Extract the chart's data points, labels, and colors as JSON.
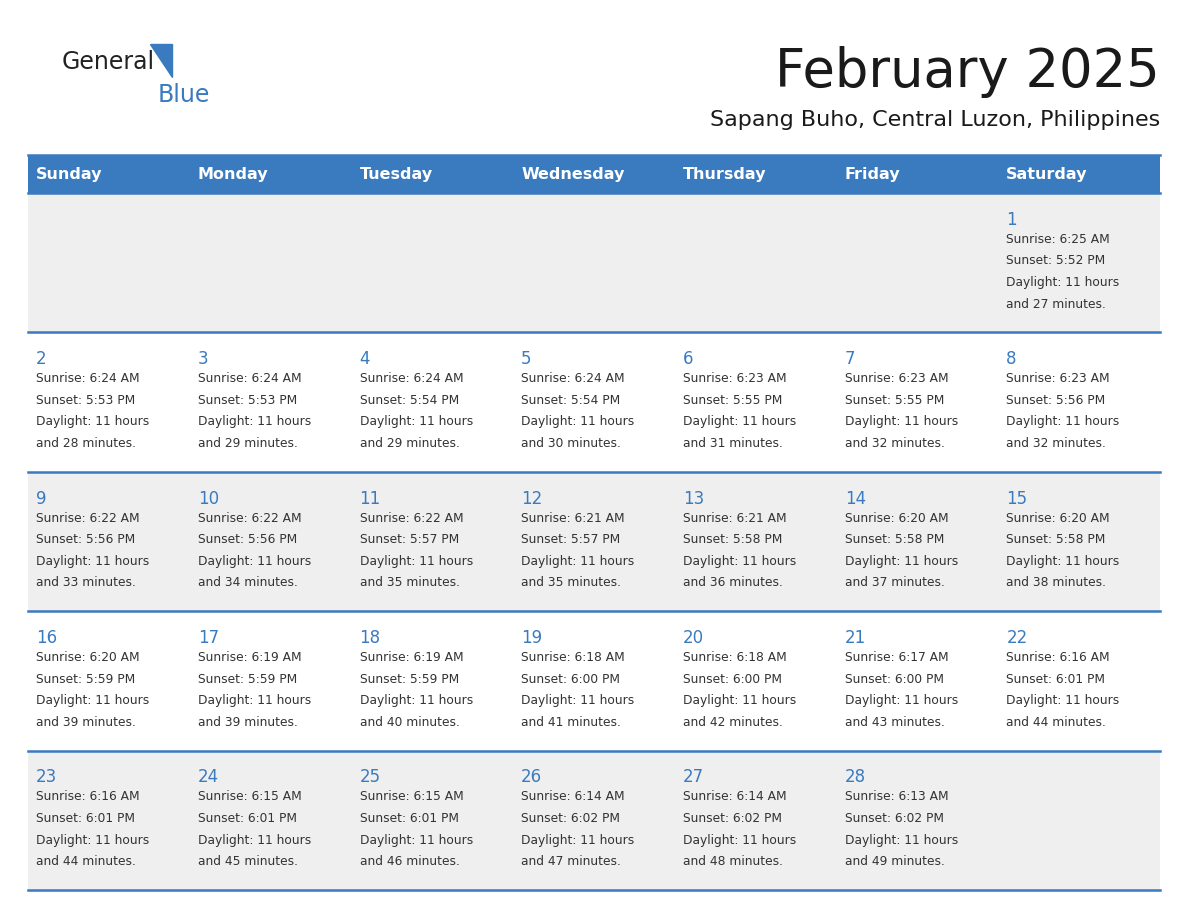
{
  "title": "February 2025",
  "subtitle": "Sapang Buho, Central Luzon, Philippines",
  "days_of_week": [
    "Sunday",
    "Monday",
    "Tuesday",
    "Wednesday",
    "Thursday",
    "Friday",
    "Saturday"
  ],
  "header_bg": "#3a7abf",
  "header_text": "#ffffff",
  "row_bg_light": "#efefef",
  "row_bg_white": "#ffffff",
  "separator_color": "#3a7abf",
  "day_num_color": "#3a7abf",
  "cell_text_color": "#333333",
  "title_color": "#1a1a1a",
  "subtitle_color": "#1a1a1a",
  "logo_general_color": "#222222",
  "logo_blue_color": "#3a7abf",
  "calendar_data": [
    {
      "day": 1,
      "col": 6,
      "row": 0,
      "sunrise": "6:25 AM",
      "sunset": "5:52 PM",
      "daylight_hours": 11,
      "daylight_minutes": 27
    },
    {
      "day": 2,
      "col": 0,
      "row": 1,
      "sunrise": "6:24 AM",
      "sunset": "5:53 PM",
      "daylight_hours": 11,
      "daylight_minutes": 28
    },
    {
      "day": 3,
      "col": 1,
      "row": 1,
      "sunrise": "6:24 AM",
      "sunset": "5:53 PM",
      "daylight_hours": 11,
      "daylight_minutes": 29
    },
    {
      "day": 4,
      "col": 2,
      "row": 1,
      "sunrise": "6:24 AM",
      "sunset": "5:54 PM",
      "daylight_hours": 11,
      "daylight_minutes": 29
    },
    {
      "day": 5,
      "col": 3,
      "row": 1,
      "sunrise": "6:24 AM",
      "sunset": "5:54 PM",
      "daylight_hours": 11,
      "daylight_minutes": 30
    },
    {
      "day": 6,
      "col": 4,
      "row": 1,
      "sunrise": "6:23 AM",
      "sunset": "5:55 PM",
      "daylight_hours": 11,
      "daylight_minutes": 31
    },
    {
      "day": 7,
      "col": 5,
      "row": 1,
      "sunrise": "6:23 AM",
      "sunset": "5:55 PM",
      "daylight_hours": 11,
      "daylight_minutes": 32
    },
    {
      "day": 8,
      "col": 6,
      "row": 1,
      "sunrise": "6:23 AM",
      "sunset": "5:56 PM",
      "daylight_hours": 11,
      "daylight_minutes": 32
    },
    {
      "day": 9,
      "col": 0,
      "row": 2,
      "sunrise": "6:22 AM",
      "sunset": "5:56 PM",
      "daylight_hours": 11,
      "daylight_minutes": 33
    },
    {
      "day": 10,
      "col": 1,
      "row": 2,
      "sunrise": "6:22 AM",
      "sunset": "5:56 PM",
      "daylight_hours": 11,
      "daylight_minutes": 34
    },
    {
      "day": 11,
      "col": 2,
      "row": 2,
      "sunrise": "6:22 AM",
      "sunset": "5:57 PM",
      "daylight_hours": 11,
      "daylight_minutes": 35
    },
    {
      "day": 12,
      "col": 3,
      "row": 2,
      "sunrise": "6:21 AM",
      "sunset": "5:57 PM",
      "daylight_hours": 11,
      "daylight_minutes": 35
    },
    {
      "day": 13,
      "col": 4,
      "row": 2,
      "sunrise": "6:21 AM",
      "sunset": "5:58 PM",
      "daylight_hours": 11,
      "daylight_minutes": 36
    },
    {
      "day": 14,
      "col": 5,
      "row": 2,
      "sunrise": "6:20 AM",
      "sunset": "5:58 PM",
      "daylight_hours": 11,
      "daylight_minutes": 37
    },
    {
      "day": 15,
      "col": 6,
      "row": 2,
      "sunrise": "6:20 AM",
      "sunset": "5:58 PM",
      "daylight_hours": 11,
      "daylight_minutes": 38
    },
    {
      "day": 16,
      "col": 0,
      "row": 3,
      "sunrise": "6:20 AM",
      "sunset": "5:59 PM",
      "daylight_hours": 11,
      "daylight_minutes": 39
    },
    {
      "day": 17,
      "col": 1,
      "row": 3,
      "sunrise": "6:19 AM",
      "sunset": "5:59 PM",
      "daylight_hours": 11,
      "daylight_minutes": 39
    },
    {
      "day": 18,
      "col": 2,
      "row": 3,
      "sunrise": "6:19 AM",
      "sunset": "5:59 PM",
      "daylight_hours": 11,
      "daylight_minutes": 40
    },
    {
      "day": 19,
      "col": 3,
      "row": 3,
      "sunrise": "6:18 AM",
      "sunset": "6:00 PM",
      "daylight_hours": 11,
      "daylight_minutes": 41
    },
    {
      "day": 20,
      "col": 4,
      "row": 3,
      "sunrise": "6:18 AM",
      "sunset": "6:00 PM",
      "daylight_hours": 11,
      "daylight_minutes": 42
    },
    {
      "day": 21,
      "col": 5,
      "row": 3,
      "sunrise": "6:17 AM",
      "sunset": "6:00 PM",
      "daylight_hours": 11,
      "daylight_minutes": 43
    },
    {
      "day": 22,
      "col": 6,
      "row": 3,
      "sunrise": "6:16 AM",
      "sunset": "6:01 PM",
      "daylight_hours": 11,
      "daylight_minutes": 44
    },
    {
      "day": 23,
      "col": 0,
      "row": 4,
      "sunrise": "6:16 AM",
      "sunset": "6:01 PM",
      "daylight_hours": 11,
      "daylight_minutes": 44
    },
    {
      "day": 24,
      "col": 1,
      "row": 4,
      "sunrise": "6:15 AM",
      "sunset": "6:01 PM",
      "daylight_hours": 11,
      "daylight_minutes": 45
    },
    {
      "day": 25,
      "col": 2,
      "row": 4,
      "sunrise": "6:15 AM",
      "sunset": "6:01 PM",
      "daylight_hours": 11,
      "daylight_minutes": 46
    },
    {
      "day": 26,
      "col": 3,
      "row": 4,
      "sunrise": "6:14 AM",
      "sunset": "6:02 PM",
      "daylight_hours": 11,
      "daylight_minutes": 47
    },
    {
      "day": 27,
      "col": 4,
      "row": 4,
      "sunrise": "6:14 AM",
      "sunset": "6:02 PM",
      "daylight_hours": 11,
      "daylight_minutes": 48
    },
    {
      "day": 28,
      "col": 5,
      "row": 4,
      "sunrise": "6:13 AM",
      "sunset": "6:02 PM",
      "daylight_hours": 11,
      "daylight_minutes": 49
    }
  ],
  "num_rows": 5,
  "num_cols": 7
}
